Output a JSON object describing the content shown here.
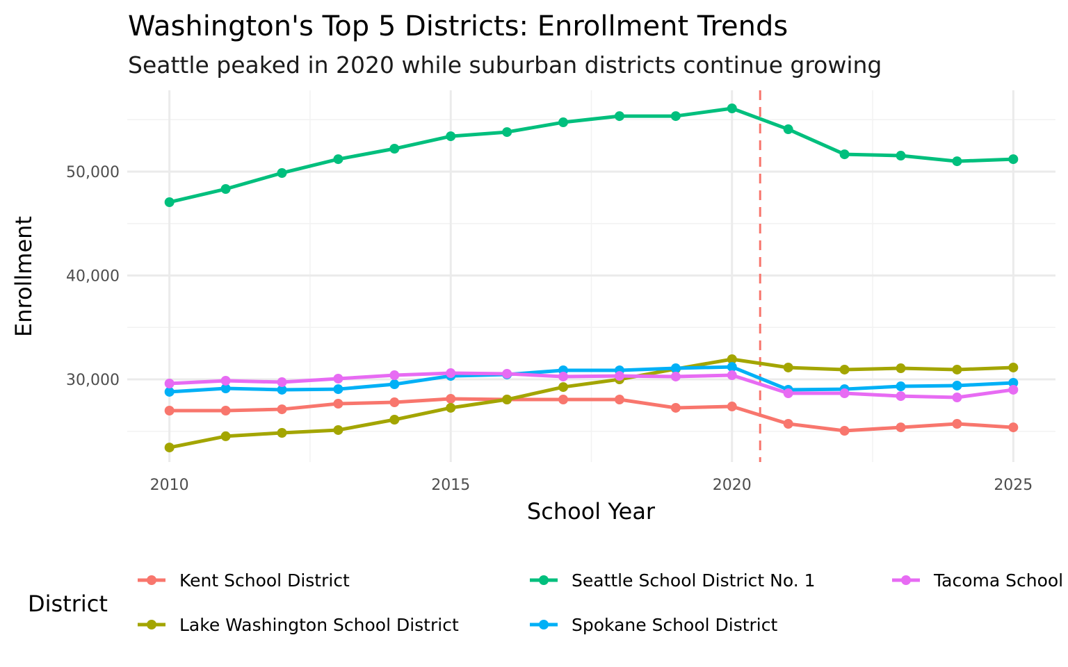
{
  "chart_data": {
    "type": "line",
    "title": "Washington's Top 5 Districts: Enrollment Trends",
    "subtitle": "Seattle peaked in 2020 while suburban districts continue growing",
    "xlabel": "School Year",
    "ylabel": "Enrollment",
    "xlim": [
      2009.25,
      2025.75
    ],
    "ylim": [
      22040,
      57830
    ],
    "x_ticks": [
      2010,
      2015,
      2020,
      2025
    ],
    "x_tick_labels": [
      "2010",
      "2015",
      "2020",
      "2025"
    ],
    "y_ticks": [
      30000,
      40000,
      50000
    ],
    "y_tick_labels": [
      "30,000",
      "40,000",
      "50,000"
    ],
    "grid": true,
    "reference_line": {
      "orientation": "vertical",
      "x": 2020.5,
      "style": "dashed",
      "color": "#F8766D"
    },
    "legend": {
      "title": "District",
      "position": "bottom"
    },
    "x": [
      2010,
      2011,
      2012,
      2013,
      2014,
      2015,
      2016,
      2017,
      2018,
      2019,
      2020,
      2021,
      2022,
      2023,
      2024,
      2025
    ],
    "series": [
      {
        "name": "Kent School District",
        "color": "#F8766D",
        "values": [
          26990,
          26990,
          27120,
          27660,
          27790,
          28130,
          28060,
          28060,
          28060,
          27260,
          27390,
          25720,
          25050,
          25380,
          25720,
          25380
        ]
      },
      {
        "name": "Lake Washington School District",
        "color": "#A3A500",
        "values": [
          23440,
          24520,
          24850,
          25120,
          26120,
          27260,
          28060,
          29260,
          30000,
          31000,
          31940,
          31140,
          30940,
          31070,
          30940,
          31140
        ]
      },
      {
        "name": "Seattle School District No. 1",
        "color": "#00BF7D",
        "values": [
          47060,
          48330,
          49870,
          51200,
          52210,
          53410,
          53810,
          54750,
          55350,
          55350,
          56090,
          54080,
          51670,
          51540,
          51000,
          51200
        ]
      },
      {
        "name": "Spokane School District",
        "color": "#00B0F6",
        "values": [
          28800,
          29130,
          29000,
          29060,
          29530,
          30330,
          30470,
          30870,
          30870,
          31070,
          31200,
          29000,
          29060,
          29330,
          29400,
          29670
        ]
      },
      {
        "name": "Tacoma School District",
        "color": "#E76BF3",
        "values": [
          29600,
          29870,
          29730,
          30070,
          30400,
          30600,
          30540,
          30270,
          30330,
          30270,
          30400,
          28660,
          28660,
          28390,
          28260,
          29000
        ]
      }
    ]
  }
}
